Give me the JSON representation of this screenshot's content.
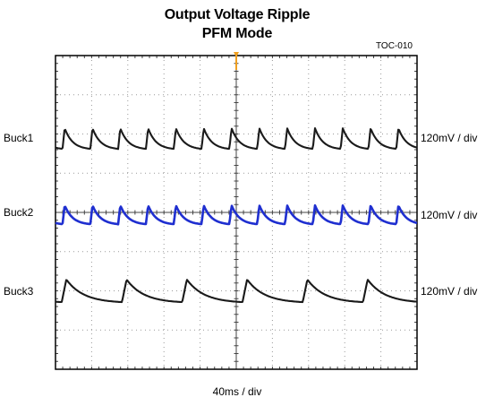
{
  "title": "Output Voltage Ripple",
  "subtitle": "PFM Mode",
  "figure_id": "TOC-010",
  "x_scale": "40ms / div",
  "channels": [
    {
      "label": "Buck1",
      "scale": "120mV / div",
      "color": "#1a1a1a"
    },
    {
      "label": "Buck2",
      "scale": "120mV / div",
      "color": "#1f2fd0"
    },
    {
      "label": "Buck3",
      "scale": "120mV / div",
      "color": "#1a1a1a"
    }
  ],
  "trigger_color": "#f0a020",
  "chart_data": {
    "type": "line",
    "title": "Output Voltage Ripple",
    "subtitle": "PFM Mode",
    "x_divisions": 10,
    "y_divisions": 8,
    "grid": true,
    "series": [
      {
        "name": "Buck1",
        "cycles": 13,
        "ripple_divisions": 0.55,
        "color": "#1a1a1a"
      },
      {
        "name": "Buck2",
        "cycles": 13,
        "ripple_divisions": 0.5,
        "color": "#1f2fd0"
      },
      {
        "name": "Buck3",
        "cycles": 6,
        "ripple_divisions": 0.6,
        "color": "#1a1a1a"
      }
    ]
  }
}
